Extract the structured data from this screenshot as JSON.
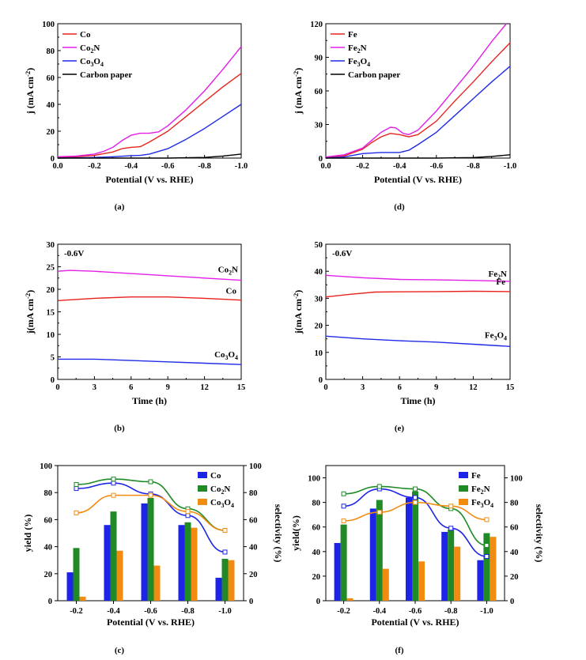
{
  "figure": {
    "panel_tags": [
      "(a)",
      "(d)",
      "(b)",
      "(e)",
      "(c)",
      "(f)"
    ]
  },
  "chart_data": [
    {
      "id": "a",
      "type": "line",
      "xlabel": "Potential (V vs. RHE)",
      "ylabel": "j (mA cm-2)",
      "xlim": [
        0.0,
        -1.0
      ],
      "ylim": [
        0,
        100
      ],
      "xticks": [
        "0.0",
        "-0.2",
        "-0.4",
        "-0.6",
        "-0.8",
        "-1.0"
      ],
      "yticks": [
        "0",
        "20",
        "40",
        "60",
        "80",
        "100"
      ],
      "legend_position": "top-left",
      "series": [
        {
          "name": "Co",
          "color": "#e8231f",
          "x": [
            0,
            -0.1,
            -0.2,
            -0.3,
            -0.35,
            -0.4,
            -0.45,
            -0.5,
            -0.6,
            -0.7,
            -0.8,
            -0.9,
            -1.0
          ],
          "y": [
            0.5,
            1,
            2,
            4.5,
            7,
            8,
            8.5,
            12,
            20,
            31,
            42,
            53,
            63
          ]
        },
        {
          "name": "Co2N",
          "color": "#e31ee8",
          "x": [
            0,
            -0.1,
            -0.2,
            -0.25,
            -0.3,
            -0.35,
            -0.4,
            -0.45,
            -0.5,
            -0.55,
            -0.6,
            -0.7,
            -0.8,
            -0.9,
            -1.0
          ],
          "y": [
            1,
            1.5,
            3,
            5,
            8,
            13,
            17,
            18.5,
            18.5,
            19.5,
            24,
            36,
            50,
            66,
            83
          ]
        },
        {
          "name": "Co3O4",
          "color": "#1f2be8",
          "x": [
            0,
            -0.2,
            -0.3,
            -0.4,
            -0.45,
            -0.5,
            -0.6,
            -0.7,
            -0.8,
            -0.9,
            -1.0
          ],
          "y": [
            0,
            0.5,
            1,
            1.8,
            2,
            3,
            7,
            14,
            22,
            31,
            40
          ]
        },
        {
          "name": "Carbon paper",
          "color": "#000000",
          "x": [
            0,
            -0.6,
            -0.8,
            -0.9,
            -1.0
          ],
          "y": [
            0,
            0,
            0.5,
            1.5,
            3
          ]
        }
      ]
    },
    {
      "id": "d",
      "type": "line",
      "xlabel": "Potential (V vs. RHE)",
      "ylabel": "j (mA cm-2)",
      "xlim": [
        0.0,
        -1.0
      ],
      "ylim": [
        0,
        120
      ],
      "xticks": [
        "0.0",
        "-0.2",
        "-0.4",
        "-0.6",
        "-0.8",
        "-1.0"
      ],
      "yticks": [
        "0",
        "30",
        "60",
        "90",
        "120"
      ],
      "legend_position": "top-left",
      "series": [
        {
          "name": "Fe",
          "color": "#e8231f",
          "x": [
            0,
            -0.1,
            -0.2,
            -0.25,
            -0.3,
            -0.35,
            -0.4,
            -0.45,
            -0.5,
            -0.6,
            -0.7,
            -0.8,
            -0.9,
            -1.0
          ],
          "y": [
            0.5,
            2,
            8,
            14,
            19,
            22,
            21,
            19,
            21,
            33,
            51,
            68,
            86,
            103
          ]
        },
        {
          "name": "Fe2N",
          "color": "#e31ee8",
          "x": [
            0,
            -0.1,
            -0.2,
            -0.25,
            -0.3,
            -0.35,
            -0.38,
            -0.42,
            -0.45,
            -0.5,
            -0.6,
            -0.7,
            -0.8,
            -0.9,
            -0.98
          ],
          "y": [
            1,
            3,
            9,
            16,
            23,
            27.5,
            27,
            22,
            21,
            25,
            42,
            62,
            82,
            104,
            120
          ]
        },
        {
          "name": "Fe3O4",
          "color": "#1f2be8",
          "x": [
            0,
            -0.1,
            -0.2,
            -0.3,
            -0.4,
            -0.45,
            -0.5,
            -0.6,
            -0.7,
            -0.8,
            -0.9,
            -1.0
          ],
          "y": [
            0,
            1,
            4,
            5,
            5,
            7,
            12,
            23,
            38,
            53,
            68,
            82
          ]
        },
        {
          "name": "Carbon paper",
          "color": "#000000",
          "x": [
            0,
            -0.6,
            -0.8,
            -0.9,
            -1.0
          ],
          "y": [
            0,
            0,
            0.5,
            1.5,
            3
          ]
        }
      ]
    },
    {
      "id": "b",
      "type": "line",
      "annotation": "-0.6V",
      "xlabel": "Time (h)",
      "ylabel": "j(mA cm-2)",
      "xlim": [
        0,
        15
      ],
      "ylim": [
        0,
        30
      ],
      "xticks": [
        "0",
        "3",
        "6",
        "9",
        "12",
        "15"
      ],
      "yticks": [
        "0",
        "5",
        "10",
        "15",
        "20",
        "25",
        "30"
      ],
      "series": [
        {
          "name": "Co2N",
          "color": "#e31ee8",
          "x": [
            0,
            1,
            3,
            6,
            9,
            12,
            15
          ],
          "y": [
            24,
            24.2,
            24,
            23.5,
            23,
            22.5,
            22
          ]
        },
        {
          "name": "Co",
          "color": "#e8231f",
          "x": [
            0,
            3,
            6,
            9,
            12,
            15
          ],
          "y": [
            17.5,
            18,
            18.3,
            18.3,
            18,
            17.6
          ]
        },
        {
          "name": "Co3O4",
          "color": "#1f2be8",
          "x": [
            0,
            3,
            6,
            9,
            12,
            15
          ],
          "y": [
            4.5,
            4.5,
            4.2,
            3.9,
            3.6,
            3.3
          ]
        }
      ]
    },
    {
      "id": "e",
      "type": "line",
      "annotation": "-0.6V",
      "xlabel": "Time (h)",
      "ylabel": "j(mA cm-2)",
      "xlim": [
        0,
        15
      ],
      "ylim": [
        0,
        50
      ],
      "xticks": [
        "0",
        "3",
        "6",
        "9",
        "12",
        "15"
      ],
      "yticks": [
        "0",
        "10",
        "20",
        "30",
        "40",
        "50"
      ],
      "series": [
        {
          "name": "Fe2N",
          "color": "#e31ee8",
          "x": [
            0,
            3,
            6,
            9,
            12,
            15
          ],
          "y": [
            38.5,
            37.6,
            37,
            36.8,
            36.6,
            36.3
          ]
        },
        {
          "name": "Fe",
          "color": "#e8231f",
          "x": [
            0,
            2,
            4,
            6,
            9,
            12,
            15
          ],
          "y": [
            30.5,
            31.5,
            32.3,
            32.4,
            32.5,
            32.6,
            32.5
          ]
        },
        {
          "name": "Fe3O4",
          "color": "#1f2be8",
          "x": [
            0,
            3,
            6,
            9,
            12,
            15
          ],
          "y": [
            16,
            15,
            14.3,
            13.8,
            13,
            12.2
          ]
        }
      ]
    },
    {
      "id": "c",
      "type": "bar",
      "categories": [
        "-0.2",
        "-0.4",
        "-0.6",
        "-0.8",
        "-1.0"
      ],
      "xlabel": "Potential (V vs. RHE)",
      "ylabel": "yield (%)",
      "y2label": "selectivity (%)",
      "ylim": [
        0,
        100
      ],
      "y2lim": [
        0,
        100
      ],
      "yticks": [
        "0",
        "20",
        "40",
        "60",
        "80",
        "100"
      ],
      "y2ticks": [
        "0",
        "20",
        "40",
        "60",
        "80",
        "100"
      ],
      "legend_position": "top-right",
      "series": [
        {
          "name": "Co",
          "color": "#1d24e8",
          "values": [
            21,
            56,
            72,
            56,
            17
          ],
          "selectivity": [
            83,
            87,
            79,
            63,
            36
          ]
        },
        {
          "name": "Co2N",
          "color": "#1f8a26",
          "values": [
            39,
            66,
            76,
            58,
            31
          ],
          "selectivity": [
            86,
            90,
            88,
            68,
            52
          ]
        },
        {
          "name": "Co3O4",
          "color": "#f28c11",
          "values": [
            3,
            37,
            26,
            54,
            30
          ],
          "selectivity": [
            65,
            78,
            78,
            66,
            52
          ]
        }
      ]
    },
    {
      "id": "f",
      "type": "bar",
      "categories": [
        "-0.2",
        "-0.4",
        "-0.6",
        "-0.8",
        "-1.0"
      ],
      "xlabel": "Potential (V vs. RHE)",
      "ylabel": "yield(%)",
      "y2label": "selectivity (%)",
      "ylim": [
        0,
        110
      ],
      "y2lim": [
        0,
        110
      ],
      "yticks": [
        "0",
        "20",
        "40",
        "60",
        "80",
        "100"
      ],
      "y2ticks": [
        "0",
        "20",
        "40",
        "60",
        "80",
        "100"
      ],
      "legend_position": "top-right",
      "series": [
        {
          "name": "Fe",
          "color": "#1d24e8",
          "values": [
            47,
            75,
            84,
            56,
            33
          ],
          "selectivity": [
            77,
            91,
            84,
            59,
            36
          ]
        },
        {
          "name": "Fe2N",
          "color": "#1f8a26",
          "values": [
            62,
            82,
            89,
            58,
            55
          ],
          "selectivity": [
            87,
            93,
            91,
            75,
            45
          ]
        },
        {
          "name": "Fe3O4",
          "color": "#f28c11",
          "values": [
            2,
            26,
            32,
            44,
            52
          ],
          "selectivity": [
            65,
            72,
            80,
            77,
            66
          ]
        }
      ]
    }
  ]
}
